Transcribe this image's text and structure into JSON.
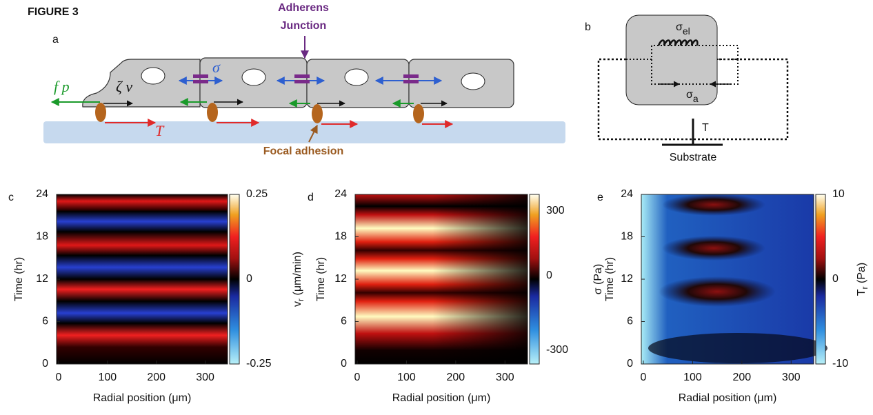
{
  "figure_label": "FIGURE 3",
  "panel_a": {
    "label": "a",
    "adherens_junction": [
      "Adherens",
      "Junction"
    ],
    "focal_adhesion": "Focal adhesion",
    "symbols": {
      "force": "f p⃗",
      "friction": "ζ v⃗",
      "stress": "σ",
      "traction": "T⃗"
    }
  },
  "panel_b": {
    "label": "b",
    "sigma_el": [
      "σ",
      "el"
    ],
    "sigma_a": [
      "σ",
      "a"
    ],
    "traction": "T",
    "substrate": "Substrate"
  },
  "panels": [
    {
      "label": "c",
      "xlabel": "Radial position (μm)",
      "ylabel": "Time (hr)",
      "xticks": [
        "0",
        "100",
        "200",
        "300"
      ],
      "yticks": [
        "0",
        "6",
        "12",
        "18",
        "24"
      ],
      "colorbar_ticks": [
        "0.25",
        "0",
        "-0.25"
      ]
    },
    {
      "label": "d",
      "side_label": [
        "v",
        "r",
        " (μm/min)"
      ],
      "xlabel": "Radial position (μm)",
      "ylabel": "Time (hr)",
      "xticks": [
        "0",
        "100",
        "200",
        "300"
      ],
      "yticks": [
        "0",
        "6",
        "12",
        "18",
        "24"
      ],
      "colorbar_ticks": [
        "300",
        "0",
        "-300"
      ]
    },
    {
      "label": "e",
      "side_label": [
        "σ (Pa)"
      ],
      "xlabel": "Radial position (μm)",
      "ylabel": "Time (hr)",
      "xticks": [
        "0",
        "100",
        "200",
        "300"
      ],
      "yticks": [
        "0",
        "6",
        "12",
        "18",
        "24"
      ],
      "colorbar_ticks": [
        "10",
        "0",
        "-10"
      ],
      "colorbar_label": [
        "T",
        "r",
        " (Pa)"
      ]
    }
  ]
}
